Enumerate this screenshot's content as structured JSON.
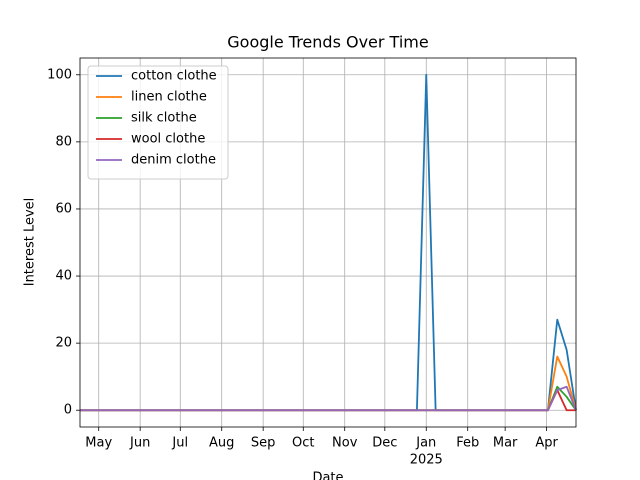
{
  "chart_data": {
    "type": "line",
    "title": "Google Trends Over Time",
    "x_label": "Date",
    "y_label": "Interest Level",
    "x": [
      "2024-04-17",
      "2024-04-24",
      "2024-05-01",
      "2024-05-08",
      "2024-05-15",
      "2024-05-22",
      "2024-05-29",
      "2024-06-05",
      "2024-06-12",
      "2024-06-19",
      "2024-06-26",
      "2024-07-03",
      "2024-07-10",
      "2024-07-17",
      "2024-07-24",
      "2024-07-31",
      "2024-08-07",
      "2024-08-14",
      "2024-08-21",
      "2024-08-28",
      "2024-09-04",
      "2024-09-11",
      "2024-09-18",
      "2024-09-25",
      "2024-10-02",
      "2024-10-09",
      "2024-10-16",
      "2024-10-23",
      "2024-10-30",
      "2024-11-06",
      "2024-11-13",
      "2024-11-20",
      "2024-11-27",
      "2024-12-04",
      "2024-12-11",
      "2024-12-18",
      "2024-12-25",
      "2025-01-01",
      "2025-01-08",
      "2025-01-15",
      "2025-01-22",
      "2025-01-29",
      "2025-02-05",
      "2025-02-12",
      "2025-02-19",
      "2025-02-26",
      "2025-03-05",
      "2025-03-12",
      "2025-03-19",
      "2025-03-26",
      "2025-04-02",
      "2025-04-09",
      "2025-04-16",
      "2025-04-23"
    ],
    "series": [
      {
        "name": "cotton clothe",
        "color": "#1f77b4",
        "values": [
          0,
          0,
          0,
          0,
          0,
          0,
          0,
          0,
          0,
          0,
          0,
          0,
          0,
          0,
          0,
          0,
          0,
          0,
          0,
          0,
          0,
          0,
          0,
          0,
          0,
          0,
          0,
          0,
          0,
          0,
          0,
          0,
          0,
          0,
          0,
          0,
          0,
          100,
          0,
          0,
          0,
          0,
          0,
          0,
          0,
          0,
          0,
          0,
          0,
          0,
          0,
          27,
          18,
          0
        ]
      },
      {
        "name": "linen clothe",
        "color": "#ff7f0e",
        "values": [
          0,
          0,
          0,
          0,
          0,
          0,
          0,
          0,
          0,
          0,
          0,
          0,
          0,
          0,
          0,
          0,
          0,
          0,
          0,
          0,
          0,
          0,
          0,
          0,
          0,
          0,
          0,
          0,
          0,
          0,
          0,
          0,
          0,
          0,
          0,
          0,
          0,
          0,
          0,
          0,
          0,
          0,
          0,
          0,
          0,
          0,
          0,
          0,
          0,
          0,
          0,
          16,
          10,
          0
        ]
      },
      {
        "name": "silk clothe",
        "color": "#2ca02c",
        "values": [
          0,
          0,
          0,
          0,
          0,
          0,
          0,
          0,
          0,
          0,
          0,
          0,
          0,
          0,
          0,
          0,
          0,
          0,
          0,
          0,
          0,
          0,
          0,
          0,
          0,
          0,
          0,
          0,
          0,
          0,
          0,
          0,
          0,
          0,
          0,
          0,
          0,
          0,
          0,
          0,
          0,
          0,
          0,
          0,
          0,
          0,
          0,
          0,
          0,
          0,
          0,
          7,
          4,
          0
        ]
      },
      {
        "name": "wool clothe",
        "color": "#d62728",
        "values": [
          0,
          0,
          0,
          0,
          0,
          0,
          0,
          0,
          0,
          0,
          0,
          0,
          0,
          0,
          0,
          0,
          0,
          0,
          0,
          0,
          0,
          0,
          0,
          0,
          0,
          0,
          0,
          0,
          0,
          0,
          0,
          0,
          0,
          0,
          0,
          0,
          0,
          0,
          0,
          0,
          0,
          0,
          0,
          0,
          0,
          0,
          0,
          0,
          0,
          0,
          0,
          6,
          0,
          0
        ]
      },
      {
        "name": "denim clothe",
        "color": "#9467bd",
        "values": [
          0,
          0,
          0,
          0,
          0,
          0,
          0,
          0,
          0,
          0,
          0,
          0,
          0,
          0,
          0,
          0,
          0,
          0,
          0,
          0,
          0,
          0,
          0,
          0,
          0,
          0,
          0,
          0,
          0,
          0,
          0,
          0,
          0,
          0,
          0,
          0,
          0,
          0,
          0,
          0,
          0,
          0,
          0,
          0,
          0,
          0,
          0,
          0,
          0,
          0,
          0,
          6,
          7,
          0
        ]
      }
    ],
    "xlim": [
      "2024-04-17",
      "2025-04-23"
    ],
    "xticks": [
      {
        "value": "2024-05-01",
        "label": "May"
      },
      {
        "value": "2024-06-01",
        "label": "Jun"
      },
      {
        "value": "2024-07-01",
        "label": "Jul"
      },
      {
        "value": "2024-08-01",
        "label": "Aug"
      },
      {
        "value": "2024-09-01",
        "label": "Sep"
      },
      {
        "value": "2024-10-01",
        "label": "Oct"
      },
      {
        "value": "2024-11-01",
        "label": "Nov"
      },
      {
        "value": "2024-12-01",
        "label": "Dec"
      },
      {
        "value": "2025-01-01",
        "label": "Jan",
        "sublabel": "2025"
      },
      {
        "value": "2025-02-01",
        "label": "Feb"
      },
      {
        "value": "2025-03-01",
        "label": "Mar"
      },
      {
        "value": "2025-04-01",
        "label": "Apr"
      }
    ],
    "ylim": [
      -5,
      105
    ],
    "yticks": [
      0,
      20,
      40,
      60,
      80,
      100
    ],
    "grid": true,
    "legend": "upper left"
  }
}
